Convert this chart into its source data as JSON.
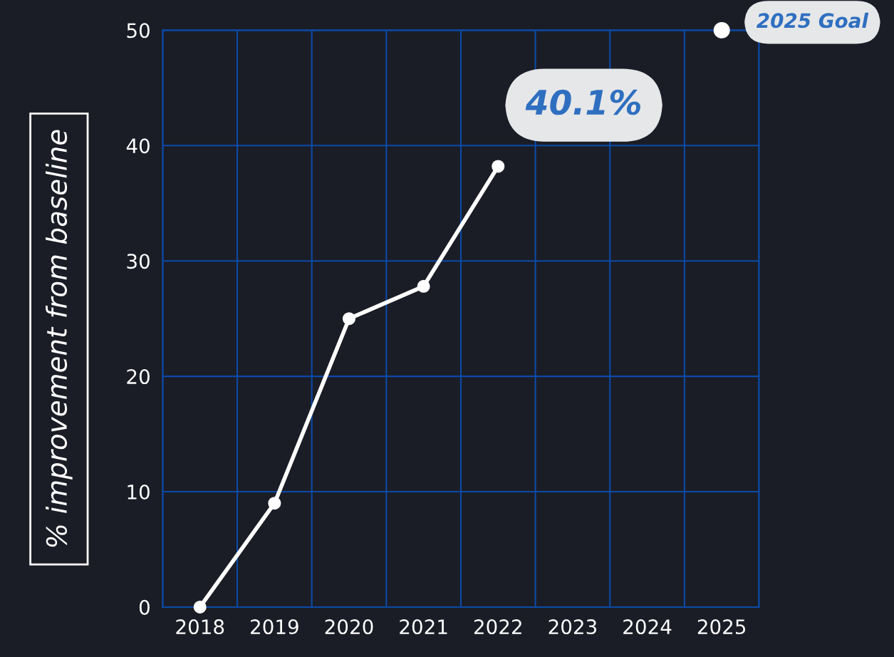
{
  "chart_data": {
    "type": "line",
    "ylabel": "% improvement from baseline",
    "categories": [
      "2018",
      "2019",
      "2020",
      "2021",
      "2022",
      "2023",
      "2024",
      "2025"
    ],
    "series": [
      {
        "color": "#ffffff",
        "values": [
          0,
          9,
          25,
          27.8,
          38.2,
          null,
          null,
          null
        ]
      },
      {
        "type": "scatter",
        "color": "#ffffff",
        "values": [
          null,
          null,
          null,
          null,
          null,
          null,
          null,
          50
        ]
      }
    ],
    "ylim": [
      0,
      50
    ],
    "yticks": [
      0,
      10,
      20,
      30,
      40,
      50
    ],
    "grid": true,
    "marker": "circle",
    "line_style": "solid",
    "annotations": [
      "40.1%",
      {
        "text": "2025 Goal",
        "x": "2025",
        "y": 50
      }
    ]
  }
}
